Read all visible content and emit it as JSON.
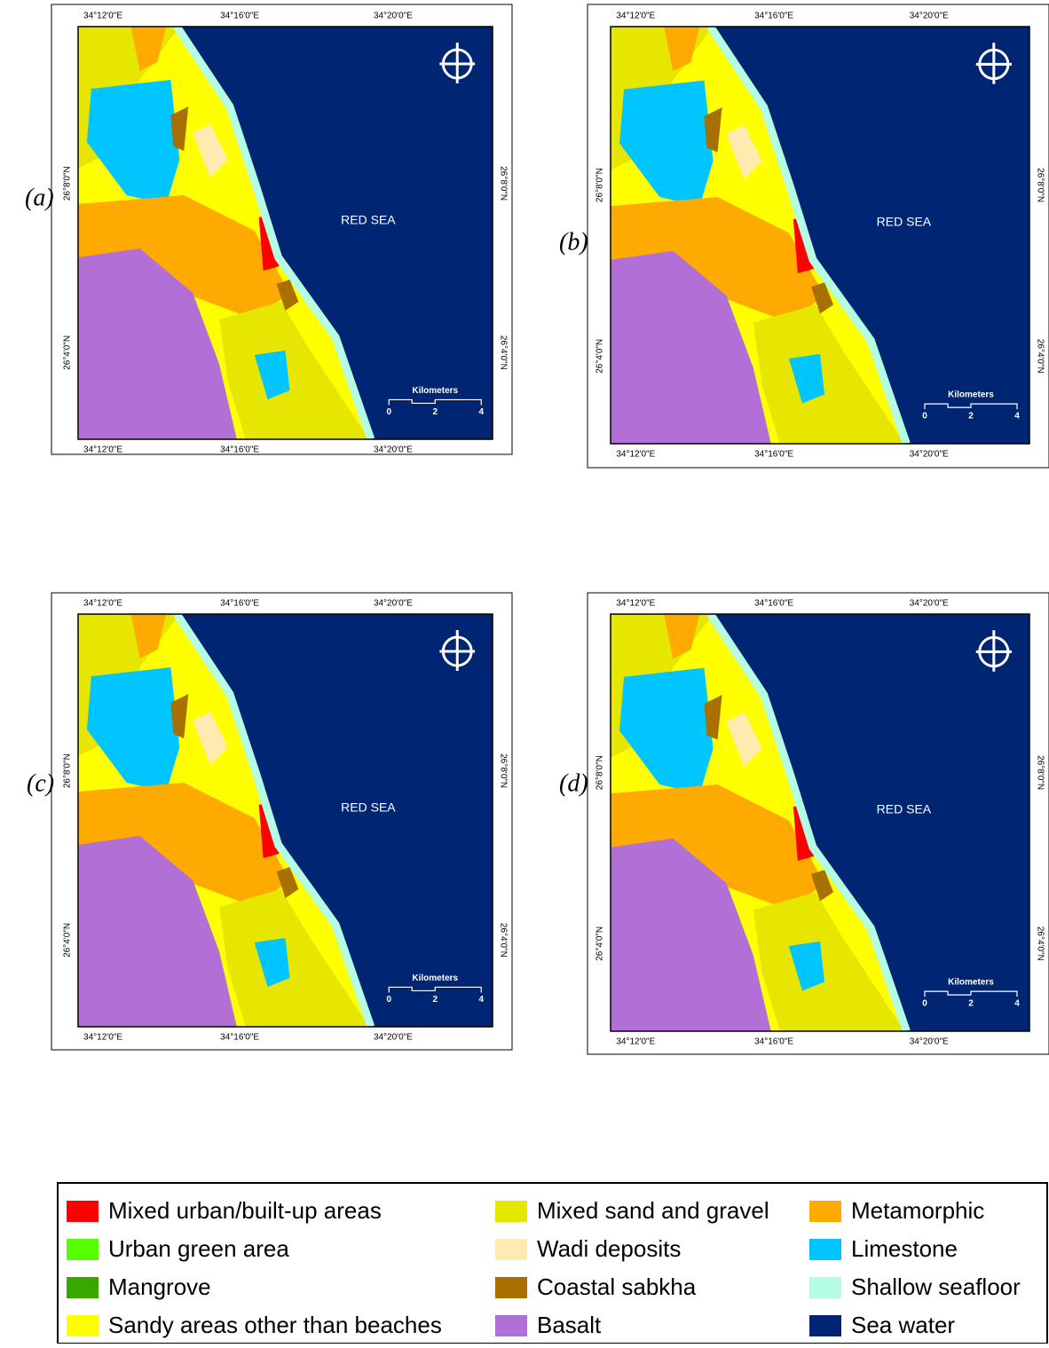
{
  "maps": [
    {
      "label": "(a)"
    },
    {
      "label": "(b)"
    },
    {
      "label": "(c)"
    },
    {
      "label": "(d)"
    }
  ],
  "coordinates": {
    "longitudes": [
      "34°12'0\"E",
      "34°16'0\"E",
      "34°20'0\"E"
    ],
    "latitudes": [
      "26°8'0\"N",
      "26°4'0\"N"
    ]
  },
  "sea_label": "RED SEA",
  "scale_bar": {
    "title": "Kilometers",
    "ticks": [
      0,
      2,
      4
    ]
  },
  "legend": {
    "columns": [
      [
        {
          "label": "Mixed urban/built-up areas",
          "color": "#ff0000"
        },
        {
          "label": "Urban green area",
          "color": "#55ff00"
        },
        {
          "label": "Mangrove",
          "color": "#38a800"
        },
        {
          "label": "Sandy areas other than beaches",
          "color": "#ffff00"
        }
      ],
      [
        {
          "label": "Mixed sand and gravel",
          "color": "#e6e600"
        },
        {
          "label": "Wadi deposits",
          "color": "#ffebaf"
        },
        {
          "label": "Coastal sabkha",
          "color": "#a87000"
        },
        {
          "label": "Basalt",
          "color": "#b26fd6"
        }
      ],
      [
        {
          "label": "Metamorphic",
          "color": "#ffaa00"
        },
        {
          "label": "Limestone",
          "color": "#00c5ff"
        },
        {
          "label": "Shallow seafloor",
          "color": "#b4fce4"
        },
        {
          "label": "Sea water",
          "color": "#002673"
        }
      ]
    ]
  }
}
